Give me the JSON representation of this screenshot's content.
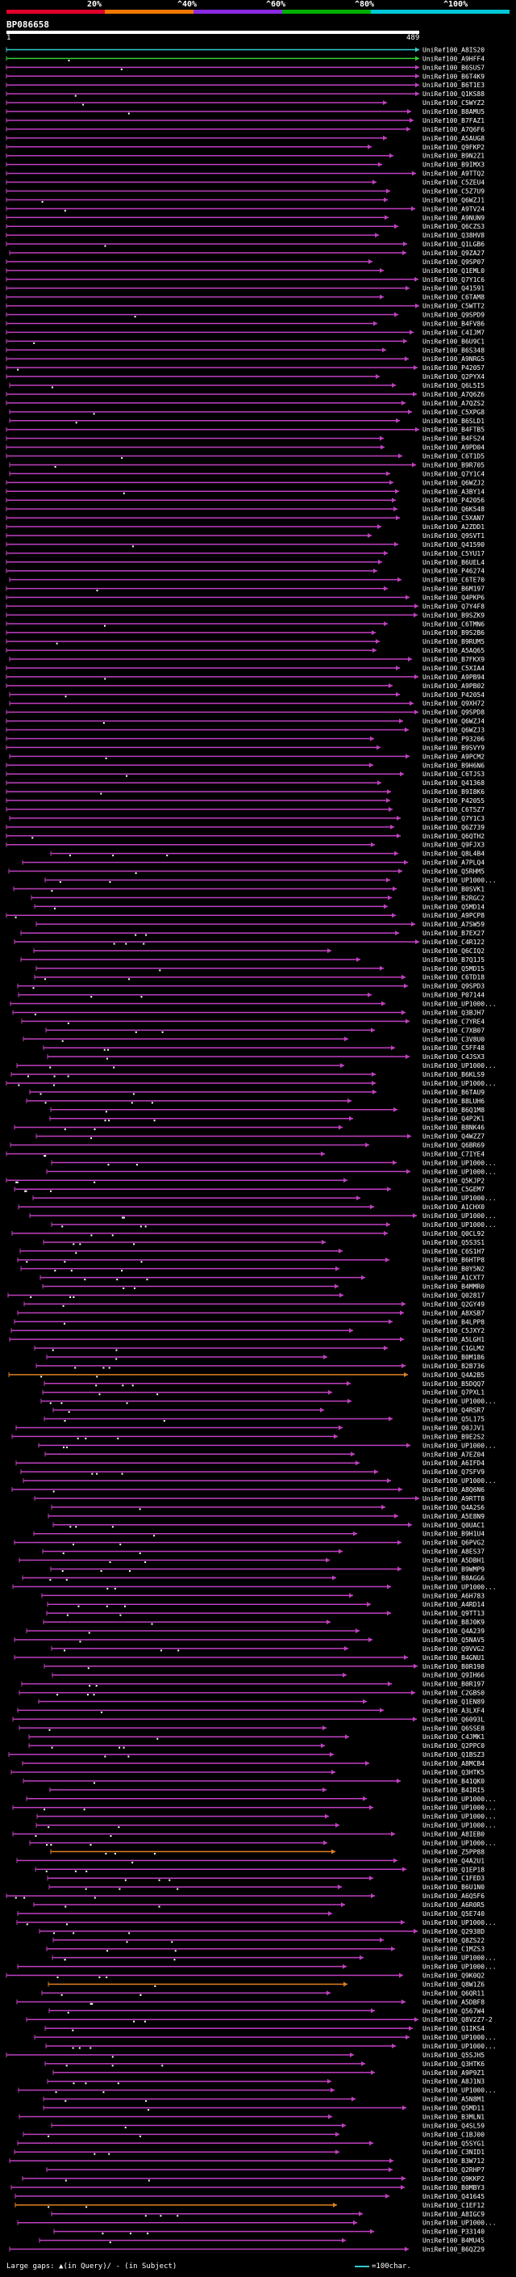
{
  "scale": {
    "ticks": [
      "20%",
      "^40%",
      "^60%",
      "^80%",
      "^100%"
    ],
    "colors": [
      "#e0002a",
      "#f07800",
      "#8a2be2",
      "#00b000",
      "#00c8d8"
    ]
  },
  "query": {
    "title": "BP086658",
    "start": "1",
    "end": "489"
  },
  "hits": [
    "UniRef100_A8IS20",
    "UniRef100_A9HFF4",
    "UniRef100_B6SUS7",
    "UniRef100_B6T4K9",
    "UniRef100_B6T1E3",
    "UniRef100_Q1KS88",
    "UniRef100_C5WYZ2",
    "UniRef100_B8AMU5",
    "UniRef100_B7FAZ1",
    "UniRef100_A7Q6F6",
    "UniRef100_A5AUG8",
    "UniRef100_Q9FKP2",
    "UniRef100_B9N2Z1",
    "UniRef100_B9IMX3",
    "UniRef100_A9TTQ2",
    "UniRef100_C5ZEU4",
    "UniRef100_C5Z7U9",
    "UniRef100_Q6WZJ1",
    "UniRef100_A9TV24",
    "UniRef100_A9NUN9",
    "UniRef100_Q6CZS3",
    "UniRef100_Q38HV8",
    "UniRef100_Q1LGB6",
    "UniRef100_Q9ZA27",
    "UniRef100_Q9SP07",
    "UniRef100_Q1EML0",
    "UniRef100_Q7Y1C6",
    "UniRef100_Q41591",
    "UniRef100_C6TAM8",
    "UniRef100_C5WTT2",
    "UniRef100_Q9SPD9",
    "UniRef100_B4FV86",
    "UniRef100_C4IJM7",
    "UniRef100_B6U9C1",
    "UniRef100_B6S348",
    "UniRef100_A9NRG5",
    "UniRef100_P42057",
    "UniRef100_Q2PYX4",
    "UniRef100_Q6L5I5",
    "UniRef100_A7Q6Z6",
    "UniRef100_A7QZS2",
    "UniRef100_C5XPG8",
    "UniRef100_B6SLD1",
    "UniRef100_B4FTB5",
    "UniRef100_B4FS24",
    "UniRef100_A9PD04",
    "UniRef100_C6T1D5",
    "UniRef100_B9R705",
    "UniRef100_Q7Y1C4",
    "UniRef100_Q6WZJ2",
    "UniRef100_A3BY14",
    "UniRef100_P42056",
    "UniRef100_Q6K548",
    "UniRef100_C5XAN7",
    "UniRef100_A2ZDD1",
    "UniRef100_Q9SVT1",
    "UniRef100_Q41590",
    "UniRef100_C5YU17",
    "UniRef100_B6UEL4",
    "UniRef100_P46274",
    "UniRef100_C6TE70",
    "UniRef100_B6M197",
    "UniRef100_Q4PKP6",
    "UniRef100_Q7Y4F8",
    "UniRef100_B9SZK9",
    "UniRef100_C6TMN6",
    "UniRef100_B9S2B6",
    "UniRef100_B9RUM5",
    "UniRef100_A5AQ65",
    "UniRef100_B7FKX9",
    "UniRef100_C5XIA4",
    "UniRef100_A9PB94",
    "UniRef100_A9PB02",
    "UniRef100_P42054",
    "UniRef100_Q9XH72",
    "UniRef100_Q9SPD8",
    "UniRef100_Q6WZJ4",
    "UniRef100_Q6WZJ3",
    "UniRef100_P93206",
    "UniRef100_B9SVY9",
    "UniRef100_A9PCM2",
    "UniRef100_B9H6N6",
    "UniRef100_C6TJS3",
    "UniRef100_Q41368",
    "UniRef100_B9I8K6",
    "UniRef100_P42055",
    "UniRef100_C6T5Z7",
    "UniRef100_Q7Y1C3",
    "UniRef100_Q6Z739",
    "UniRef100_Q6QTH2",
    "UniRef100_Q9FJX3",
    "UniRef100_Q8L4B4",
    "UniRef100_A7PLQ4",
    "UniRef100_Q5RHM5",
    "UniRef100_UP1000...",
    "UniRef100_B0SVK1",
    "UniRef100_B2RGC2",
    "UniRef100_Q5MD14",
    "UniRef100_A9PCP8",
    "UniRef100_A7SW59",
    "UniRef100_B7EX27",
    "UniRef100_C4R122",
    "UniRef100_Q6CIQ2",
    "UniRef100_B7Q1J5",
    "UniRef100_Q5MD15",
    "UniRef100_C6TD18",
    "UniRef100_Q9SPD3",
    "UniRef100_P07144",
    "UniRef100_UP1000...",
    "UniRef100_Q3BJH7",
    "UniRef100_C7YRE4",
    "UniRef100_C7XB07",
    "UniRef100_C3V8U0",
    "UniRef100_C5FF48",
    "UniRef100_C4JSX3",
    "UniRef100_UP1000...",
    "UniRef100_B6KLS9",
    "UniRef100_UP1000...",
    "UniRef100_B6TAU9",
    "UniRef100_B8LUH6",
    "UniRef100_B6Q1M8",
    "UniRef100_Q4P2K1",
    "UniRef100_B8NK46",
    "UniRef100_Q4WZZ7",
    "UniRef100_Q6BR69",
    "UniRef100_C7IYE4",
    "UniRef100_UP1000...",
    "UniRef100_UP1000...",
    "UniRef100_Q5KJP2",
    "UniRef100_C5GEM7",
    "UniRef100_UP1000...",
    "UniRef100_A1CHX0",
    "UniRef100_UP1000...",
    "UniRef100_UP1000...",
    "UniRef100_Q0CL92",
    "UniRef100_Q5S3S1",
    "UniRef100_C6S1H7",
    "UniRef100_B6HTP8",
    "UniRef100_B0Y5N2",
    "UniRef100_A1CXT7",
    "UniRef100_B4MMR0",
    "UniRef100_Q02817",
    "UniRef100_Q2GY49",
    "UniRef100_A8XSB7",
    "UniRef100_B4LPP8",
    "UniRef100_C5JXY2",
    "UniRef100_A5LGH1",
    "UniRef100_C1GLM2",
    "UniRef100_B0M186",
    "UniRef100_B2B736",
    "UniRef100_Q4A2B5",
    "UniRef100_B5DQQ7",
    "UniRef100_Q7PXL1",
    "UniRef100_UP1000...",
    "UniRef100_Q4RSR7",
    "UniRef100_Q5L175",
    "UniRef100_Q0JJV1",
    "UniRef100_B9E2S2",
    "UniRef100_UP1000...",
    "UniRef100_A7EZ04",
    "UniRef100_A6IFD4",
    "UniRef100_Q7SFV9",
    "UniRef100_UP1000...",
    "UniRef100_A8Q6N6",
    "UniRef100_A9RTT8",
    "UniRef100_Q4A2S6",
    "UniRef100_A5E8N9",
    "UniRef100_Q0UAC1",
    "UniRef100_B9H1U4",
    "UniRef100_Q6PVG2",
    "UniRef100_A8ES37",
    "UniRef100_A5DBH1",
    "UniRef100_B9WMP9",
    "UniRef100_B8AGG6",
    "UniRef100_UP1000...",
    "UniRef100_A6H783",
    "UniRef100_A4RD14",
    "UniRef100_Q9TT13",
    "UniRef100_B8J0K9",
    "UniRef100_Q4A239",
    "UniRef100_Q5NAV5",
    "UniRef100_Q9VVG2",
    "UniRef100_B4GNU1",
    "UniRef100_B0R198",
    "UniRef100_Q9IH66",
    "UniRef100_B0R197",
    "UniRef100_C2GBS0",
    "UniRef100_Q1EN89",
    "UniRef100_A3LXF4",
    "UniRef100_Q6093L",
    "UniRef100_Q6SSE8",
    "UniRef100_C4JMK1",
    "UniRef100_Q2PPC0",
    "UniRef100_Q1BSZ3",
    "UniRef100_A8MCB4",
    "UniRef100_Q3HTK5",
    "UniRef100_B41QK0",
    "UniRef100_B4IRI5",
    "UniRef100_UP1000...",
    "UniRef100_UP1000...",
    "UniRef100_UP1000...",
    "UniRef100_UP1000...",
    "UniRef100_A8IEB0",
    "UniRef100_UP1000...",
    "UniRef100_Z5PP88",
    "UniRef100_Q4A2U1",
    "UniRef100_Q1EP18",
    "UniRef100_C1FED3",
    "UniRef100_B6U1N0",
    "UniRef100_A6Q5F6",
    "UniRef100_A6R0R5",
    "UniRef100_Q5E740",
    "UniRef100_UP1000...",
    "UniRef100_Q2938D",
    "UniRef100_Q8ZS22",
    "UniRef100_C1MZS3",
    "UniRef100_UP1000...",
    "UniRef100_UP1000...",
    "UniRef100_Q9K0Q2",
    "UniRef100_Q8W1Z6",
    "UniRef100_Q6QR11",
    "UniRef100_A5DBF8",
    "UniRef100_Q567W4",
    "UniRef100_Q8V2Z7-2",
    "UniRef100_Q1IKS4",
    "UniRef100_UP1000...",
    "UniRef100_UP1000...",
    "UniRef100_Q5SJH5",
    "UniRef100_Q3HTK6",
    "UniRef100_A9P9Z1",
    "UniRef100_A8J1N3",
    "UniRef100_UP1000...",
    "UniRef100_A5N8M1",
    "UniRef100_Q5MD11",
    "UniRef100_B3MLN1",
    "UniRef100_Q4SL59",
    "UniRef100_C1BJ00",
    "UniRef100_Q5SYG1",
    "UniRef100_C3NID1",
    "UniRef100_B3W712",
    "UniRef100_Q2RHP7",
    "UniRef100_Q9KKP2",
    "UniRef100_B0MBY3",
    "UniRef100_Q41645",
    "UniRef100_C1EF12",
    "UniRef100_A8IGC9",
    "UniRef100_UP1000...",
    "UniRef100_P33140",
    "UniRef100_B4MU45",
    "UniRef100_B6QZ29"
  ],
  "legend": {
    "large_gaps": "Large gaps: ",
    "gap_note": "(in Query)/ - (in Subject)",
    "scale_note": "=100char."
  }
}
